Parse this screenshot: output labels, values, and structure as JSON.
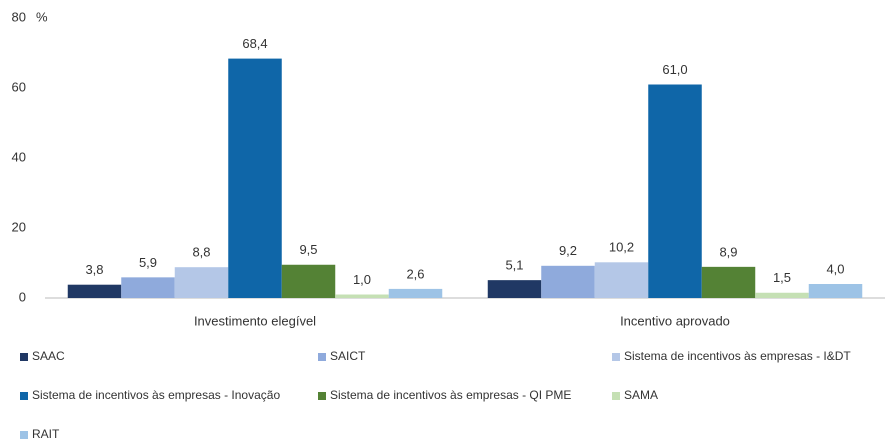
{
  "chart_data": {
    "type": "bar",
    "categories": [
      "Investimento elegível",
      "Incentivo aprovado"
    ],
    "y_unit": "%",
    "ylim": [
      0,
      80
    ],
    "yticks": [
      0,
      20,
      40,
      60,
      80
    ],
    "grid": false,
    "series": [
      {
        "name": "SAAC",
        "color": "#203864",
        "values": [
          3.8,
          5.1
        ],
        "value_labels": [
          "3,8",
          "5,1"
        ]
      },
      {
        "name": "SAICT",
        "color": "#8faadc",
        "values": [
          5.9,
          9.2
        ],
        "value_labels": [
          "5,9",
          "9,2"
        ]
      },
      {
        "name": "Sistema de incentivos às empresas - I&DT",
        "color": "#b4c7e7",
        "values": [
          8.8,
          10.2
        ],
        "value_labels": [
          "8,8",
          "10,2"
        ]
      },
      {
        "name": "Sistema de incentivos às empresas - Inovação",
        "color": "#0f66a8",
        "values": [
          68.4,
          61.0
        ],
        "value_labels": [
          "68,4",
          "61,0"
        ]
      },
      {
        "name": "Sistema de incentivos às empresas - QI PME",
        "color": "#548235",
        "values": [
          9.5,
          8.9
        ],
        "value_labels": [
          "9,5",
          "8,9"
        ]
      },
      {
        "name": "SAMA",
        "color": "#c5e0b4",
        "values": [
          1.0,
          1.5
        ],
        "value_labels": [
          "1,0",
          "1,5"
        ]
      },
      {
        "name": "RAIT",
        "color": "#9dc3e6",
        "values": [
          2.6,
          4.0
        ],
        "value_labels": [
          "2,6",
          "4,0"
        ]
      }
    ]
  }
}
